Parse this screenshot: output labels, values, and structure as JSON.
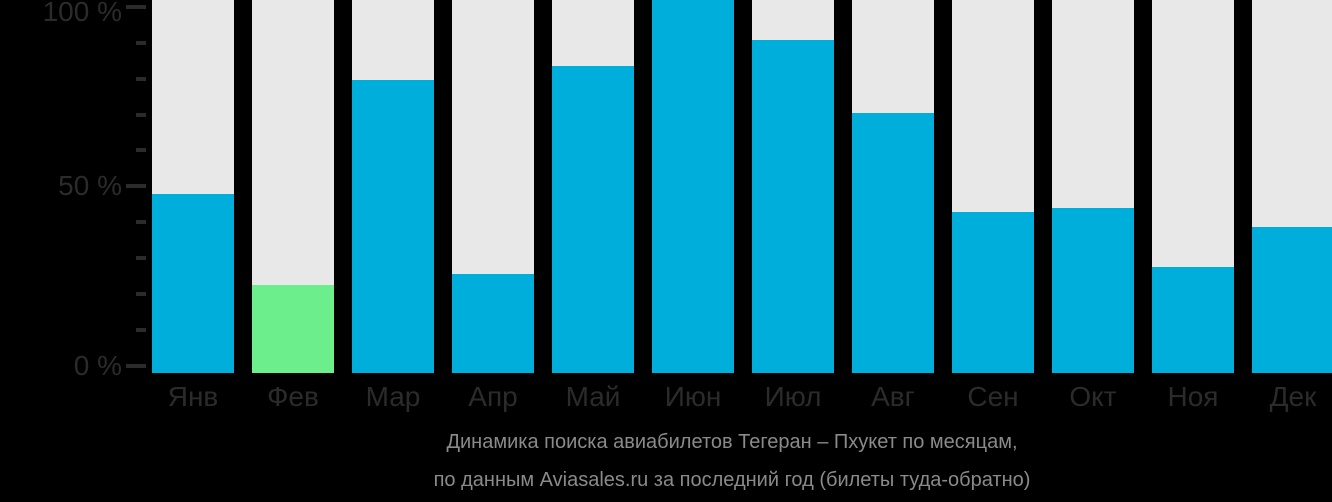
{
  "chart_data": {
    "type": "bar",
    "title": "Динамика поиска авиабилетов Тегеран – Пхукет по месяцам,",
    "subtitle": "по данным Aviasales.ru за последний год (билеты туда-обратно)",
    "title_lines": [
      "Динамика поиска авиабилетов Тегеран – Пхукет по месяцам,",
      "по данным Aviasales.ru за последний год (билеты туда-обратно)"
    ],
    "unit": "%",
    "categories": [
      "Янв",
      "Фев",
      "Мар",
      "Апр",
      "Май",
      "Июн",
      "Июл",
      "Авг",
      "Сен",
      "Окт",
      "Ноя",
      "Дек"
    ],
    "category_keys": [
      "jan",
      "feb",
      "mar",
      "apr",
      "may",
      "jun",
      "jul",
      "aug",
      "sep",
      "oct",
      "nov",
      "dec"
    ],
    "values": [
      49,
      24,
      80,
      27,
      84,
      100,
      91,
      71,
      44,
      45,
      29,
      40
    ],
    "max_value_index": 5,
    "max_bar_reaches_top_edge": true,
    "highlight_index": 1,
    "ylim": [
      0,
      100
    ],
    "grid": false,
    "legend": "none",
    "yticks": [
      {
        "label": "100 %",
        "major": true
      },
      {
        "label": "",
        "major": false
      },
      {
        "label": "",
        "major": false
      },
      {
        "label": "",
        "major": false
      },
      {
        "label": "",
        "major": false
      },
      {
        "label": "50 %",
        "major": true
      },
      {
        "label": "",
        "major": false
      },
      {
        "label": "",
        "major": false
      },
      {
        "label": "",
        "major": false
      },
      {
        "label": "",
        "major": false
      },
      {
        "label": "0 %",
        "major": true
      }
    ],
    "colors": {
      "background": "#000000",
      "bar": "#00AEDB",
      "highlight_bar": "#6CEE8C",
      "column_track": "#E8E8E8",
      "axis_text": "#2B2B2B",
      "tick_mark": "#2B2B2B",
      "caption_text": "#8A8A8A"
    }
  }
}
